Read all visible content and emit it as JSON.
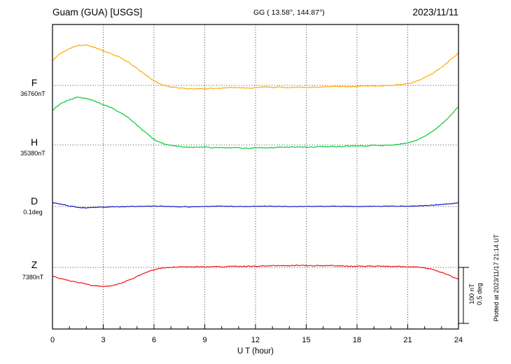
{
  "header": {
    "station": "Guam (GUA)  [USGS]",
    "coords": "GG ( 13.58°, 144.87°)",
    "date": "2023/11/11"
  },
  "x_axis": {
    "label": "U T (hour)",
    "min": 0,
    "max": 24,
    "ticks": [
      0,
      3,
      6,
      9,
      12,
      15,
      18,
      21,
      24
    ]
  },
  "scale_bar": {
    "nT_label": "100 nT",
    "deg_label": "0.5 deg"
  },
  "plotted_at": "Plotted at 2023/11/17 21:14 UT",
  "chart_data": {
    "type": "line",
    "xlabel": "U T (hour)",
    "x_range": [
      0,
      24
    ],
    "x_ticks": [
      0,
      3,
      6,
      9,
      12,
      15,
      18,
      21,
      24
    ],
    "grid": "dotted",
    "values_are": "offset from baseline (nT for F/H/Z, deg for D)",
    "x": [
      0,
      0.5,
      1,
      1.5,
      2,
      2.5,
      3,
      3.5,
      4,
      4.5,
      5,
      5.5,
      6,
      6.5,
      7,
      7.5,
      8,
      8.5,
      9,
      9.5,
      10,
      10.5,
      11,
      11.5,
      12,
      12.5,
      13,
      13.5,
      14,
      14.5,
      15,
      15.5,
      16,
      16.5,
      17,
      17.5,
      18,
      18.5,
      19,
      19.5,
      20,
      20.5,
      21,
      21.5,
      22,
      22.5,
      23,
      23.5,
      24
    ],
    "series": [
      {
        "name": "F",
        "label": "F",
        "baseline_label": "36760nT",
        "baseline": 36760,
        "unit": "nT",
        "color": "#ffaa00",
        "values": [
          45,
          58,
          66,
          71,
          72,
          68,
          62,
          56,
          50,
          41,
          30,
          19,
          8,
          1,
          -3,
          -5,
          -6,
          -6,
          -6,
          -5,
          -5,
          -4,
          -4,
          -5,
          -4,
          -3,
          -4,
          -3,
          -4,
          -3,
          -4,
          -3,
          -3,
          -2,
          -2,
          -2,
          -2,
          -1,
          -1,
          -1,
          0,
          1,
          3,
          7,
          14,
          22,
          32,
          45,
          58
        ]
      },
      {
        "name": "H",
        "label": "H",
        "baseline_label": "35380nT",
        "baseline": 35380,
        "unit": "nT",
        "color": "#00cc33",
        "values": [
          62,
          74,
          81,
          85,
          83,
          78,
          72,
          66,
          58,
          48,
          35,
          22,
          10,
          3,
          -1,
          -3,
          -4,
          -4,
          -4,
          -5,
          -5,
          -5,
          -5,
          -6,
          -5,
          -5,
          -5,
          -4,
          -4,
          -4,
          -4,
          -4,
          -3,
          -3,
          -3,
          -2,
          -2,
          -2,
          -1,
          -1,
          0,
          1,
          3,
          8,
          15,
          25,
          37,
          52,
          68
        ]
      },
      {
        "name": "D",
        "label": "D",
        "baseline_label": "0.1deg",
        "baseline": 0.1,
        "unit": "deg",
        "color": "#1111cc",
        "values": [
          0.035,
          0.02,
          0.005,
          -0.008,
          -0.012,
          -0.009,
          -0.006,
          -0.004,
          -0.002,
          0,
          0.001,
          0.002,
          0.003,
          0.002,
          0,
          -0.002,
          -0.003,
          -0.002,
          0,
          0.002,
          0.003,
          0.002,
          0.001,
          0,
          0.002,
          0.003,
          0.002,
          0.001,
          0,
          0.001,
          0.002,
          0.001,
          0,
          0.001,
          0.002,
          0.001,
          0,
          0.001,
          0.002,
          0.002,
          0.003,
          0.003,
          0.004,
          0.005,
          0.008,
          0.012,
          0.018,
          0.025,
          0.032
        ]
      },
      {
        "name": "Z",
        "label": "Z",
        "baseline_label": "7380nT",
        "baseline": 7380,
        "unit": "nT",
        "color": "#ee1111",
        "values": [
          -16,
          -20,
          -24,
          -27,
          -30,
          -33,
          -34,
          -33,
          -29,
          -23,
          -16,
          -9,
          -4,
          -1,
          0,
          1,
          1,
          1,
          1,
          1,
          1,
          2,
          2,
          2,
          2,
          3,
          3,
          3,
          3,
          4,
          3,
          3,
          3,
          3,
          3,
          2,
          2,
          2,
          2,
          2,
          2,
          2,
          1,
          1,
          -1,
          -4,
          -9,
          -15,
          -21
        ]
      }
    ]
  }
}
